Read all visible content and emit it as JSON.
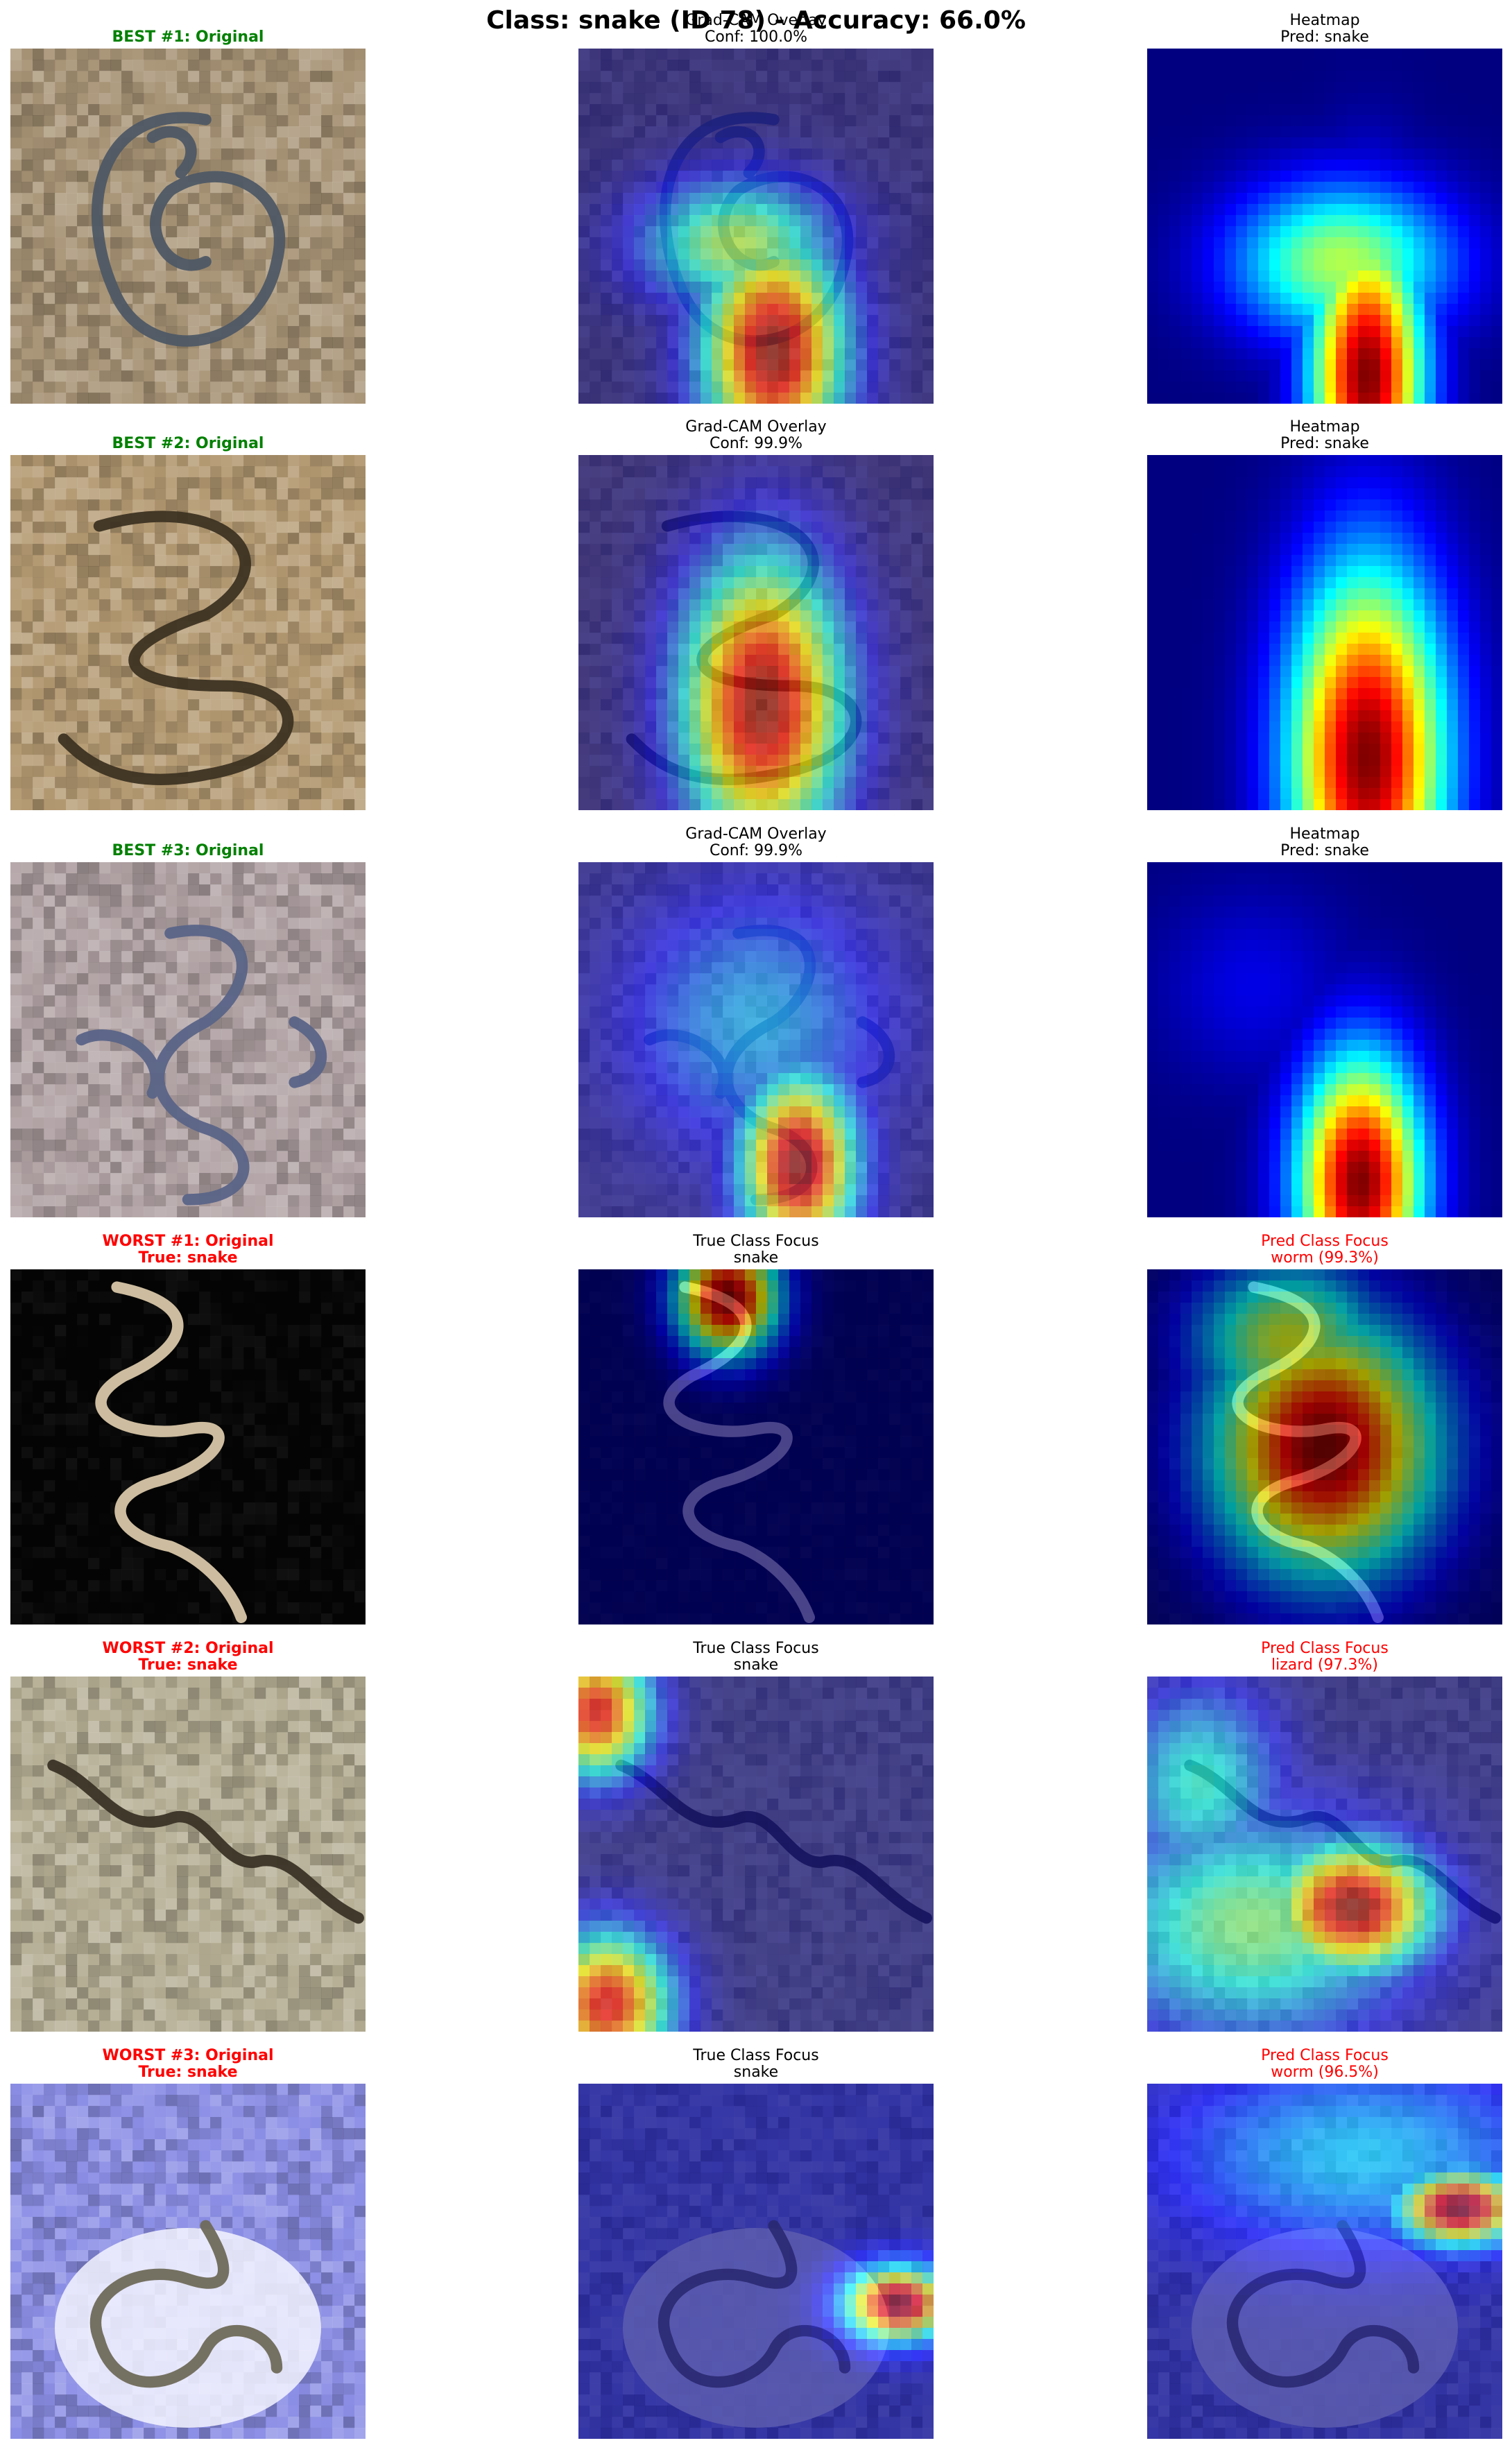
{
  "figure": {
    "title": "Class: snake (ID 78) - Accuracy: 66.0%"
  },
  "colors": {
    "best": "#008000",
    "worst": "#ff0000",
    "neutral": "#000000"
  },
  "rows": [
    {
      "panels": [
        {
          "line1": "BEST #1: Original",
          "line2": "",
          "style": "best",
          "kind": "original",
          "image": "snake-photo-coiled-gray"
        },
        {
          "line1": "Grad-CAM Overlay",
          "line2": "Conf: 100.0%",
          "style": "neutral",
          "kind": "overlay",
          "image": "gradcam-overlay"
        },
        {
          "line1": "Heatmap",
          "line2": "Pred: snake",
          "style": "neutral",
          "kind": "heatmap",
          "image": "gradcam-heatmap"
        }
      ]
    },
    {
      "panels": [
        {
          "line1": "BEST #2: Original",
          "line2": "",
          "style": "best",
          "kind": "original",
          "image": "snake-photo-coiled-tan"
        },
        {
          "line1": "Grad-CAM Overlay",
          "line2": "Conf: 99.9%",
          "style": "neutral",
          "kind": "overlay",
          "image": "gradcam-overlay"
        },
        {
          "line1": "Heatmap",
          "line2": "Pred: snake",
          "style": "neutral",
          "kind": "heatmap",
          "image": "gradcam-heatmap"
        }
      ]
    },
    {
      "panels": [
        {
          "line1": "BEST #3: Original",
          "line2": "",
          "style": "best",
          "kind": "original",
          "image": "snake-photo-spotted-blue"
        },
        {
          "line1": "Grad-CAM Overlay",
          "line2": "Conf: 99.9%",
          "style": "neutral",
          "kind": "overlay",
          "image": "gradcam-overlay"
        },
        {
          "line1": "Heatmap",
          "line2": "Pred: snake",
          "style": "neutral",
          "kind": "heatmap",
          "image": "gradcam-heatmap"
        }
      ]
    },
    {
      "panels": [
        {
          "line1": "WORST #1: Original",
          "line2": "True: snake",
          "style": "worst",
          "kind": "original",
          "image": "snake-photo-dark-background"
        },
        {
          "line1": "True Class Focus",
          "line2": "snake",
          "style": "neutral",
          "kind": "overlay",
          "image": "gradcam-overlay"
        },
        {
          "line1": "Pred Class Focus",
          "line2": "worm (99.3%)",
          "style": "worst-plain",
          "kind": "overlay",
          "image": "gradcam-overlay"
        }
      ]
    },
    {
      "panels": [
        {
          "line1": "WORST #2: Original",
          "line2": "True: snake",
          "style": "worst",
          "kind": "original",
          "image": "snake-photo-sandy"
        },
        {
          "line1": "True Class Focus",
          "line2": "snake",
          "style": "neutral",
          "kind": "overlay",
          "image": "gradcam-overlay"
        },
        {
          "line1": "Pred Class Focus",
          "line2": "lizard (97.3%)",
          "style": "worst-plain",
          "kind": "overlay",
          "image": "gradcam-overlay"
        }
      ]
    },
    {
      "panels": [
        {
          "line1": "WORST #3: Original",
          "line2": "True: snake",
          "style": "worst",
          "kind": "original",
          "image": "snake-photo-blue-bright"
        },
        {
          "line1": "True Class Focus",
          "line2": "snake",
          "style": "neutral",
          "kind": "overlay",
          "image": "gradcam-overlay"
        },
        {
          "line1": "Pred Class Focus",
          "line2": "worm (96.5%)",
          "style": "worst-plain",
          "kind": "overlay",
          "image": "gradcam-overlay"
        }
      ]
    }
  ]
}
